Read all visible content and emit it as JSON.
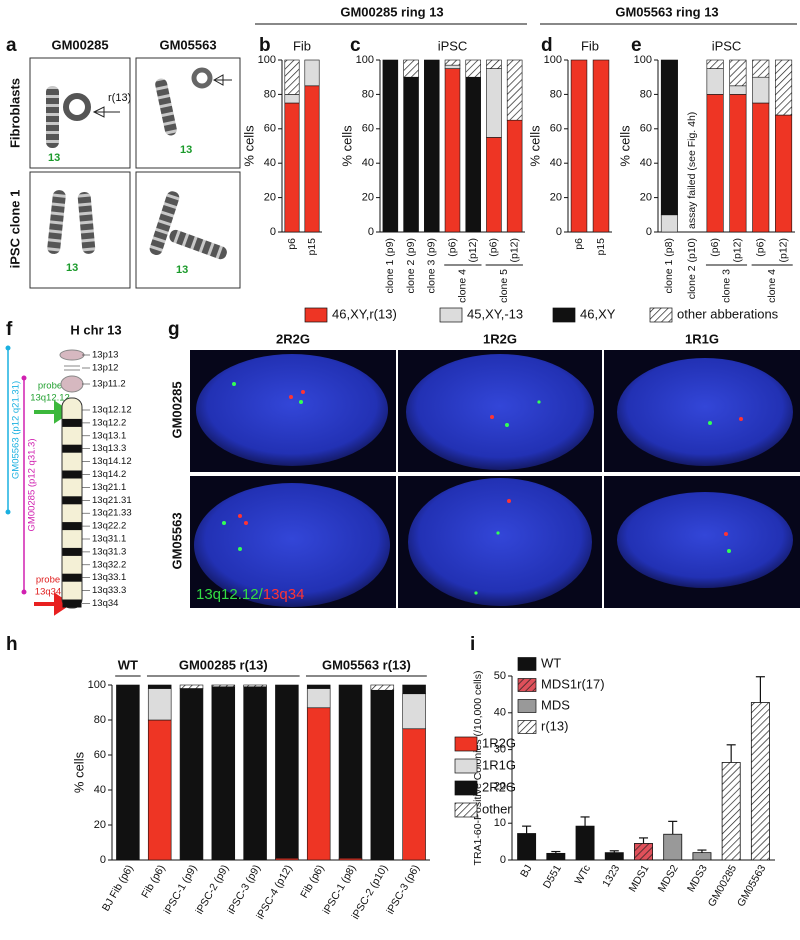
{
  "panel_labels": [
    "a",
    "b",
    "c",
    "d",
    "e",
    "f",
    "g",
    "h",
    "i"
  ],
  "headers": [
    "GM00285 ring 13",
    "GM05563 ring 13"
  ],
  "panel_a": {
    "columns": [
      "GM00285",
      "GM05563"
    ],
    "rows": [
      "Fibroblasts",
      "iPSC clone 1"
    ],
    "ring_label": "r(13)",
    "chromosome_labels": [
      "13",
      "13",
      "13",
      "13"
    ]
  },
  "panel_f": {
    "title": "H chr 13",
    "bands": [
      "13p13",
      "13p12",
      "13p11.2",
      "13q12.12",
      "13q12.2",
      "13q13.1",
      "13q13.3",
      "13q14.12",
      "13q14.2",
      "13q21.1",
      "13q21.31",
      "13q21.33",
      "13q22.2",
      "13q31.1",
      "13q31.3",
      "13q32.2",
      "13q33.1",
      "13q33.3",
      "13q34"
    ],
    "probe_green": [
      "probe",
      "13q12.12"
    ],
    "probe_red": [
      "probe",
      "13q34"
    ],
    "deletions": [
      "GM05563 (p12 q21.31)",
      "GM00285 (p12 q31.3)"
    ]
  },
  "panel_g": {
    "columns": [
      "2R2G",
      "1R2G",
      "1R1G"
    ],
    "rows": [
      "GM00285",
      "GM05563"
    ],
    "caption_green": "13q12.12/",
    "caption_red": "13q34"
  },
  "chart_data": [
    {
      "type": "stacked-bar",
      "title": "Fib",
      "ylabel": "% cells",
      "categories": [
        "p6",
        "p15"
      ],
      "ylim": [
        0,
        100
      ],
      "yticks": [
        0,
        20,
        40,
        60,
        80,
        100
      ],
      "series": [
        {
          "name": "46,XY,r(13)",
          "color": "#ee3524",
          "values": [
            75,
            85
          ]
        },
        {
          "name": "45,XY,-13",
          "color": "#dcdcdc",
          "values": [
            5,
            15
          ]
        },
        {
          "name": "46,XY",
          "color": "#111111",
          "values": [
            0,
            0
          ]
        },
        {
          "name": "other abberations",
          "color": "#ffffff",
          "hatch": true,
          "values": [
            20,
            0
          ]
        }
      ]
    },
    {
      "type": "stacked-bar",
      "title": "iPSC",
      "ylabel": "% cells",
      "categories": [
        "clone 1 (p9)",
        "clone 2 (p9)",
        "clone 3 (p9)",
        "(p6)",
        "(p12)",
        "(p6)",
        "(p12)"
      ],
      "ylim": [
        0,
        100
      ],
      "yticks": [
        0,
        20,
        40,
        60,
        80,
        100
      ],
      "groups": [
        {
          "label": "clone 4",
          "span": [
            3,
            4
          ]
        },
        {
          "label": "clone 5",
          "span": [
            5,
            6
          ]
        }
      ],
      "series": [
        {
          "values": [
            0,
            0,
            0,
            95,
            0,
            55,
            65
          ]
        },
        {
          "values": [
            0,
            0,
            0,
            2,
            0,
            40,
            0
          ]
        },
        {
          "values": [
            100,
            90,
            100,
            0,
            90,
            0,
            0
          ]
        },
        {
          "values": [
            0,
            10,
            0,
            3,
            10,
            5,
            35
          ]
        }
      ]
    },
    {
      "type": "stacked-bar",
      "title": "Fib",
      "ylabel": "% cells",
      "categories": [
        "p6",
        "p15"
      ],
      "ylim": [
        0,
        100
      ],
      "yticks": [
        0,
        20,
        40,
        60,
        80,
        100
      ],
      "series": [
        {
          "values": [
            100,
            100
          ]
        },
        {
          "values": [
            0,
            0
          ]
        },
        {
          "values": [
            0,
            0
          ]
        },
        {
          "values": [
            0,
            0
          ]
        }
      ]
    },
    {
      "type": "stacked-bar",
      "title": "iPSC",
      "ylabel": "% cells",
      "categories": [
        "clone 1 (p8)",
        "clone 2 (p10)",
        "(p6)",
        "(p12)",
        "(p6)",
        "(p12)"
      ],
      "ylim": [
        0,
        100
      ],
      "yticks": [
        0,
        20,
        40,
        60,
        80,
        100
      ],
      "annotation": "assay failed (see Fig. 4h)",
      "groups": [
        {
          "label": "clone 3",
          "span": [
            2,
            3
          ]
        },
        {
          "label": "clone 4",
          "span": [
            4,
            5
          ]
        }
      ],
      "series": [
        {
          "values": [
            0,
            null,
            80,
            80,
            75,
            68
          ]
        },
        {
          "values": [
            10,
            null,
            15,
            5,
            15,
            0
          ]
        },
        {
          "values": [
            90,
            null,
            0,
            0,
            0,
            0
          ]
        },
        {
          "values": [
            0,
            null,
            5,
            15,
            10,
            32
          ]
        }
      ]
    },
    {
      "type": "stacked-bar",
      "ylabel": "% cells",
      "categories": [
        "BJ Fib (p6)",
        "Fib (p6)",
        "iPSC-1 (p9)",
        "iPSC-2 (p9)",
        "iPSC-3 (p9)",
        "iPSC-4 (p12)",
        "Fib (p6)",
        "iPSC-1 (p8)",
        "iPSC-2 (p10)",
        "iPSC-3 (p6)"
      ],
      "ylim": [
        0,
        100
      ],
      "yticks": [
        0,
        20,
        40,
        60,
        80,
        100
      ],
      "groups": [
        {
          "label": "WT",
          "span": [
            0,
            0
          ]
        },
        {
          "label": "GM00285 r(13)",
          "span": [
            1,
            5
          ]
        },
        {
          "label": "GM05563 r(13)",
          "span": [
            6,
            9
          ]
        }
      ],
      "series": [
        {
          "name": "1R2G",
          "color": "#ee3524",
          "values": [
            0,
            80,
            0,
            0,
            0,
            1,
            87,
            1,
            0,
            75
          ]
        },
        {
          "name": "1R1G",
          "color": "#dcdcdc",
          "values": [
            0,
            18,
            0,
            0,
            0,
            0,
            11,
            0,
            0,
            20
          ]
        },
        {
          "name": "2R2G",
          "color": "#111111",
          "values": [
            100,
            2,
            98,
            99,
            99,
            99,
            2,
            99,
            97,
            5
          ]
        },
        {
          "name": "other",
          "color": "#ffffff",
          "hatch": true,
          "values": [
            0,
            0,
            2,
            1,
            1,
            0,
            0,
            0,
            3,
            0
          ]
        }
      ]
    },
    {
      "type": "bar",
      "ylabel": "TRA1-60-Positive Colonies (/10,000 cells)",
      "categories": [
        "BJ",
        "D551",
        "WTc",
        "1323",
        "MDS1",
        "MDS2",
        "MDS3",
        "GM00285",
        "GM05563"
      ],
      "ylim": [
        0,
        50
      ],
      "yticks": [
        0,
        10,
        20,
        30,
        40,
        50
      ],
      "legend": "upper left",
      "series": [
        {
          "name": "WT",
          "color": "#111111",
          "values": [
            7.2,
            1.8,
            9.2,
            2.0,
            null,
            null,
            null,
            null,
            null
          ],
          "errors": [
            2.0,
            0.5,
            2.5,
            0.5,
            null,
            null,
            null,
            null,
            null
          ]
        },
        {
          "name": "MDS1r(17)",
          "color": "#e0505a",
          "hatch": true,
          "values": [
            null,
            null,
            null,
            null,
            4.5,
            null,
            null,
            null,
            null
          ],
          "errors": [
            null,
            null,
            null,
            null,
            1.5,
            null,
            null,
            null,
            null
          ]
        },
        {
          "name": "MDS",
          "color": "#999999",
          "values": [
            null,
            null,
            null,
            null,
            null,
            7.0,
            2.0,
            null,
            null
          ],
          "errors": [
            null,
            null,
            null,
            null,
            null,
            3.5,
            0.7,
            null,
            null
          ]
        },
        {
          "name": "r(13)",
          "color": "#ffffff",
          "hatch": true,
          "values": [
            null,
            null,
            null,
            null,
            null,
            null,
            null,
            26.5,
            42.8
          ],
          "errors": [
            null,
            null,
            null,
            null,
            null,
            null,
            null,
            4.8,
            7.0
          ]
        }
      ]
    }
  ]
}
